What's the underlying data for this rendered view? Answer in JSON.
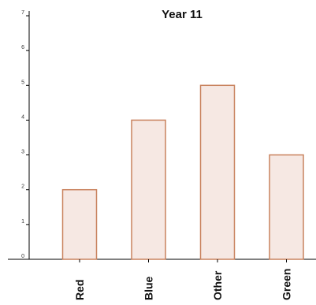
{
  "chart_data": {
    "type": "bar",
    "title": "Year 11",
    "xlabel": "",
    "ylabel": "",
    "categories": [
      "Red",
      "Blue",
      "Other",
      "Green"
    ],
    "values": [
      2,
      4,
      5,
      3
    ],
    "ylim": [
      0,
      7
    ],
    "yticks": [
      "0",
      "1",
      "2",
      "3",
      "4",
      "5",
      "6",
      "7"
    ],
    "grid": false,
    "legend": "none",
    "colors": {
      "bar_fill": "#f6e8e3",
      "bar_stroke": "#c9835f",
      "axis": "#000000"
    }
  }
}
